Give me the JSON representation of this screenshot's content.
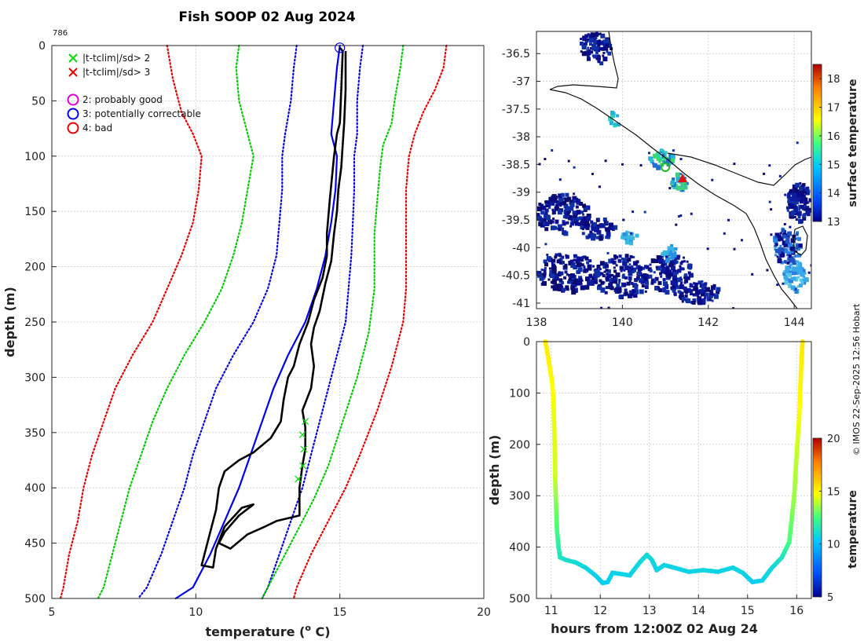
{
  "title": "Fish SOOP 02 Aug 2024",
  "profile_id": "786",
  "watermark": "© IMOS 22-Sep-2025 12:56 Hobart",
  "legend": [
    {
      "symbol": "x",
      "color": "#00dd00",
      "label": "|t-tclim|/sd> 2"
    },
    {
      "symbol": "x",
      "color": "#ee0000",
      "label": "|t-tclim|/sd> 3"
    },
    {
      "symbol": "o",
      "color": "#dd00dd",
      "label": "2: probably good"
    },
    {
      "symbol": "o",
      "color": "#0000ee",
      "label": "3: potentially correctable"
    },
    {
      "symbol": "o",
      "color": "#ee0000",
      "label": "4: bad"
    }
  ],
  "chart_data": [
    {
      "type": "line",
      "title": "Fish SOOP 02 Aug 2024",
      "xlabel": "temperature (o C)",
      "ylabel": "depth (m)",
      "xlim": [
        5,
        20
      ],
      "ylim": [
        0,
        500
      ],
      "y_reversed": true,
      "xticks": [
        5,
        10,
        15,
        20
      ],
      "yticks": [
        0,
        50,
        100,
        150,
        200,
        250,
        300,
        350,
        400,
        450,
        500
      ],
      "grid": true,
      "climatology": [
        {
          "name": "clim",
          "color": "#0000ee",
          "style": "solid",
          "points": [
            [
              15.0,
              0
            ],
            [
              14.9,
              20
            ],
            [
              14.8,
              50
            ],
            [
              14.7,
              80
            ],
            [
              14.9,
              100
            ],
            [
              14.85,
              130
            ],
            [
              14.7,
              160
            ],
            [
              14.5,
              190
            ],
            [
              14.2,
              220
            ],
            [
              13.8,
              250
            ],
            [
              13.2,
              280
            ],
            [
              12.7,
              310
            ],
            [
              12.3,
              340
            ],
            [
              11.9,
              370
            ],
            [
              11.5,
              400
            ],
            [
              11.0,
              430
            ],
            [
              10.5,
              460
            ],
            [
              9.9,
              490
            ],
            [
              9.3,
              500
            ]
          ]
        },
        {
          "name": "clim-1sd",
          "color": "#0000ee",
          "style": "dotted",
          "points": [
            [
              13.5,
              0
            ],
            [
              13.4,
              20
            ],
            [
              13.3,
              50
            ],
            [
              13.1,
              80
            ],
            [
              13.0,
              100
            ],
            [
              13.0,
              130
            ],
            [
              12.9,
              160
            ],
            [
              12.8,
              190
            ],
            [
              12.5,
              220
            ],
            [
              12.0,
              250
            ],
            [
              11.3,
              280
            ],
            [
              10.7,
              310
            ],
            [
              10.3,
              340
            ],
            [
              9.9,
              370
            ],
            [
              9.6,
              400
            ],
            [
              9.2,
              430
            ],
            [
              8.8,
              460
            ],
            [
              8.3,
              490
            ],
            [
              8.0,
              500
            ]
          ]
        },
        {
          "name": "clim+1sd",
          "color": "#0000ee",
          "style": "dotted",
          "points": [
            [
              15.8,
              0
            ],
            [
              15.7,
              20
            ],
            [
              15.6,
              50
            ],
            [
              15.6,
              80
            ],
            [
              15.5,
              100
            ],
            [
              15.5,
              130
            ],
            [
              15.45,
              160
            ],
            [
              15.4,
              190
            ],
            [
              15.3,
              220
            ],
            [
              15.2,
              250
            ],
            [
              14.9,
              280
            ],
            [
              14.6,
              310
            ],
            [
              14.3,
              340
            ],
            [
              14.0,
              370
            ],
            [
              13.7,
              400
            ],
            [
              13.3,
              430
            ],
            [
              12.9,
              460
            ],
            [
              12.5,
              490
            ],
            [
              12.3,
              500
            ]
          ]
        },
        {
          "name": "clim-2sd",
          "color": "#00cc00",
          "style": "dotted",
          "points": [
            [
              11.5,
              0
            ],
            [
              11.4,
              20
            ],
            [
              11.5,
              50
            ],
            [
              11.8,
              80
            ],
            [
              12.0,
              100
            ],
            [
              11.8,
              130
            ],
            [
              11.6,
              160
            ],
            [
              11.3,
              190
            ],
            [
              10.9,
              220
            ],
            [
              10.3,
              250
            ],
            [
              9.6,
              280
            ],
            [
              9.0,
              310
            ],
            [
              8.5,
              340
            ],
            [
              8.1,
              370
            ],
            [
              7.7,
              400
            ],
            [
              7.4,
              430
            ],
            [
              7.1,
              460
            ],
            [
              6.8,
              490
            ],
            [
              6.6,
              500
            ]
          ]
        },
        {
          "name": "clim+2sd",
          "color": "#00cc00",
          "style": "dotted",
          "points": [
            [
              17.2,
              0
            ],
            [
              17.1,
              20
            ],
            [
              16.9,
              50
            ],
            [
              16.8,
              70
            ],
            [
              16.5,
              90
            ],
            [
              16.4,
              110
            ],
            [
              16.3,
              140
            ],
            [
              16.2,
              170
            ],
            [
              16.2,
              200
            ],
            [
              16.2,
              220
            ],
            [
              16.0,
              260
            ],
            [
              15.6,
              300
            ],
            [
              15.1,
              340
            ],
            [
              14.6,
              380
            ],
            [
              14.1,
              410
            ],
            [
              13.5,
              440
            ],
            [
              12.9,
              470
            ],
            [
              12.3,
              500
            ]
          ]
        },
        {
          "name": "clim-3sd",
          "color": "#ee0000",
          "style": "dotted",
          "points": [
            [
              9.0,
              0
            ],
            [
              9.2,
              30
            ],
            [
              9.5,
              60
            ],
            [
              9.9,
              80
            ],
            [
              10.2,
              100
            ],
            [
              10.1,
              130
            ],
            [
              9.9,
              160
            ],
            [
              9.5,
              190
            ],
            [
              9.0,
              220
            ],
            [
              8.5,
              250
            ],
            [
              7.8,
              280
            ],
            [
              7.2,
              310
            ],
            [
              6.8,
              340
            ],
            [
              6.4,
              370
            ],
            [
              6.1,
              400
            ],
            [
              5.9,
              430
            ],
            [
              5.6,
              460
            ],
            [
              5.4,
              490
            ],
            [
              5.3,
              500
            ]
          ]
        },
        {
          "name": "clim+3sd",
          "color": "#ee0000",
          "style": "dotted",
          "points": [
            [
              18.7,
              0
            ],
            [
              18.6,
              20
            ],
            [
              18.3,
              40
            ],
            [
              17.9,
              60
            ],
            [
              17.6,
              80
            ],
            [
              17.4,
              100
            ],
            [
              17.3,
              130
            ],
            [
              17.3,
              160
            ],
            [
              17.3,
              190
            ],
            [
              17.3,
              220
            ],
            [
              17.2,
              250
            ],
            [
              16.8,
              290
            ],
            [
              16.3,
              330
            ],
            [
              15.7,
              370
            ],
            [
              15.2,
              400
            ],
            [
              14.6,
              430
            ],
            [
              14.0,
              460
            ],
            [
              13.5,
              490
            ],
            [
              13.4,
              500
            ]
          ]
        }
      ],
      "profile": {
        "name": "observed",
        "color": "#000000",
        "points": [
          [
            15.0,
            2
          ],
          [
            15.1,
            5
          ],
          [
            15.05,
            40
          ],
          [
            15.0,
            70
          ],
          [
            14.9,
            80
          ],
          [
            14.8,
            100
          ],
          [
            14.65,
            140
          ],
          [
            14.55,
            170
          ],
          [
            14.55,
            190
          ],
          [
            14.4,
            210
          ],
          [
            14.1,
            230
          ],
          [
            13.9,
            250
          ],
          [
            13.6,
            270
          ],
          [
            13.4,
            290
          ],
          [
            13.2,
            300
          ],
          [
            13.05,
            320
          ],
          [
            12.95,
            340
          ],
          [
            12.6,
            355
          ],
          [
            12.0,
            368
          ],
          [
            11.5,
            375
          ],
          [
            11.0,
            385
          ],
          [
            10.8,
            400
          ],
          [
            10.7,
            420
          ],
          [
            10.4,
            450
          ],
          [
            10.2,
            470
          ],
          [
            10.6,
            472
          ],
          [
            10.7,
            455
          ],
          [
            11.0,
            435
          ],
          [
            11.6,
            418
          ],
          [
            12.0,
            415
          ],
          [
            11.5,
            425
          ],
          [
            11.0,
            440
          ],
          [
            10.8,
            450
          ],
          [
            11.2,
            455
          ],
          [
            11.8,
            442
          ],
          [
            12.4,
            435
          ],
          [
            12.8,
            430
          ],
          [
            13.6,
            425
          ],
          [
            13.6,
            400
          ],
          [
            13.7,
            380
          ],
          [
            13.8,
            365
          ],
          [
            13.8,
            345
          ],
          [
            13.7,
            330
          ],
          [
            14.0,
            310
          ],
          [
            14.1,
            290
          ],
          [
            14.0,
            270
          ],
          [
            14.1,
            255
          ],
          [
            14.3,
            240
          ],
          [
            14.5,
            215
          ],
          [
            14.7,
            195
          ],
          [
            14.8,
            170
          ],
          [
            14.9,
            150
          ],
          [
            14.95,
            130
          ],
          [
            15.05,
            110
          ],
          [
            15.1,
            90
          ],
          [
            15.15,
            70
          ],
          [
            15.2,
            40
          ],
          [
            15.2,
            5
          ]
        ],
        "flag_points_sd2": [
          [
            13.8,
            340
          ],
          [
            13.7,
            352
          ],
          [
            13.75,
            365
          ],
          [
            13.72,
            380
          ],
          [
            13.55,
            392
          ]
        ],
        "start_marker": [
          15.0,
          2
        ]
      }
    },
    {
      "type": "map",
      "xlim": [
        138,
        144.4
      ],
      "ylim": [
        -41.1,
        -36.1
      ],
      "xticks": [
        138,
        140,
        142,
        144
      ],
      "xtick_labels": [
        "138",
        "140",
        "142",
        "144"
      ],
      "yticks": [
        -36.5,
        -37,
        -37.5,
        -38,
        -38.5,
        -39,
        -39.5,
        -40,
        -40.5,
        -41
      ],
      "ytick_labels": [
        "-36.5",
        "-37",
        "-37.5",
        "-38",
        "-38.5",
        "-39",
        "-39.5",
        "-40",
        "-40.5",
        "-41"
      ],
      "colorbar": {
        "label": "surface temperature",
        "min": 13,
        "max": 18.5,
        "ticks": [
          13,
          14,
          15,
          16,
          17,
          18
        ]
      },
      "markers": [
        {
          "type": "circle",
          "color": "#22bb22",
          "lon": 141.0,
          "lat": -38.55
        },
        {
          "type": "triangle",
          "color": "#dd1111",
          "lon": 141.4,
          "lat": -38.75
        }
      ]
    },
    {
      "type": "scatter",
      "xlabel": "hours from 12:00Z 02 Aug 24",
      "ylabel": "depth (m)",
      "xlim": [
        10.7,
        16.3
      ],
      "ylim": [
        0,
        500
      ],
      "y_reversed": true,
      "xticks": [
        11,
        12,
        13,
        14,
        15,
        16
      ],
      "yticks": [
        0,
        100,
        200,
        300,
        400,
        500
      ],
      "colorbar": {
        "label": "temperature",
        "min": 5,
        "max": 20,
        "ticks": [
          5,
          10,
          15,
          20
        ]
      },
      "points": [
        [
          10.88,
          0,
          15.2
        ],
        [
          10.92,
          20,
          15.1
        ],
        [
          10.97,
          50,
          15.0
        ],
        [
          11.02,
          80,
          14.8
        ],
        [
          11.05,
          120,
          14.6
        ],
        [
          11.07,
          200,
          14.4
        ],
        [
          11.08,
          260,
          14.2
        ],
        [
          11.1,
          320,
          13.2
        ],
        [
          11.12,
          370,
          12.5
        ],
        [
          11.15,
          400,
          11.8
        ],
        [
          11.18,
          420,
          11.4
        ],
        [
          11.3,
          425,
          11.2
        ],
        [
          11.5,
          430,
          11.0
        ],
        [
          11.7,
          440,
          10.8
        ],
        [
          11.9,
          455,
          10.6
        ],
        [
          12.05,
          470,
          10.5
        ],
        [
          12.15,
          468,
          10.5
        ],
        [
          12.25,
          450,
          10.6
        ],
        [
          12.4,
          452,
          10.7
        ],
        [
          12.6,
          455,
          10.7
        ],
        [
          12.8,
          430,
          10.9
        ],
        [
          12.95,
          415,
          11.0
        ],
        [
          13.05,
          425,
          10.8
        ],
        [
          13.15,
          445,
          10.7
        ],
        [
          13.3,
          435,
          10.8
        ],
        [
          13.5,
          440,
          10.7
        ],
        [
          13.8,
          448,
          10.7
        ],
        [
          14.1,
          445,
          10.8
        ],
        [
          14.4,
          448,
          10.7
        ],
        [
          14.7,
          440,
          10.8
        ],
        [
          14.9,
          450,
          10.7
        ],
        [
          15.1,
          468,
          10.5
        ],
        [
          15.3,
          465,
          10.6
        ],
        [
          15.5,
          440,
          10.9
        ],
        [
          15.7,
          420,
          11.3
        ],
        [
          15.85,
          390,
          12.5
        ],
        [
          15.95,
          300,
          13.6
        ],
        [
          16.0,
          220,
          14.0
        ],
        [
          16.05,
          150,
          14.6
        ],
        [
          16.08,
          80,
          15.0
        ],
        [
          16.1,
          30,
          15.2
        ],
        [
          16.12,
          0,
          15.3
        ]
      ]
    }
  ]
}
